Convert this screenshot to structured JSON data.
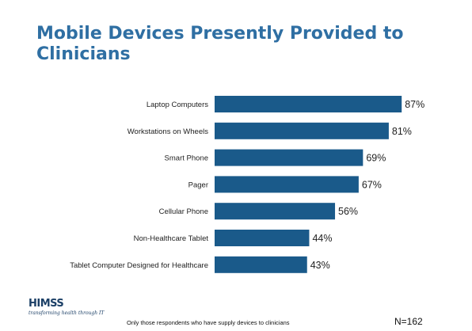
{
  "chart_data": {
    "type": "bar",
    "orientation": "horizontal",
    "title": "Mobile Devices Presently Provided to Clinicians",
    "categories": [
      "Laptop Computers",
      "Workstations on Wheels",
      "Smart Phone",
      "Pager",
      "Cellular Phone",
      "Non-Healthcare Tablet",
      "Tablet Computer Designed for Healthcare"
    ],
    "values": [
      87,
      81,
      69,
      67,
      56,
      44,
      43
    ],
    "value_labels": [
      "87%",
      "81%",
      "69%",
      "67%",
      "56%",
      "44%",
      "43%"
    ],
    "value_unit": "%",
    "xlim": [
      0,
      100
    ],
    "grid": false,
    "legend": "none",
    "bar_color": "#1a5a8a"
  },
  "colors": {
    "title": "#2f6fa3",
    "bar": "#1a5a8a"
  },
  "footer": {
    "logo_text": "HIMSS",
    "tagline": "transforming health through IT",
    "footnote": "Only those respondents  who have supply devices to clinicians",
    "sample_size": "N=162"
  }
}
